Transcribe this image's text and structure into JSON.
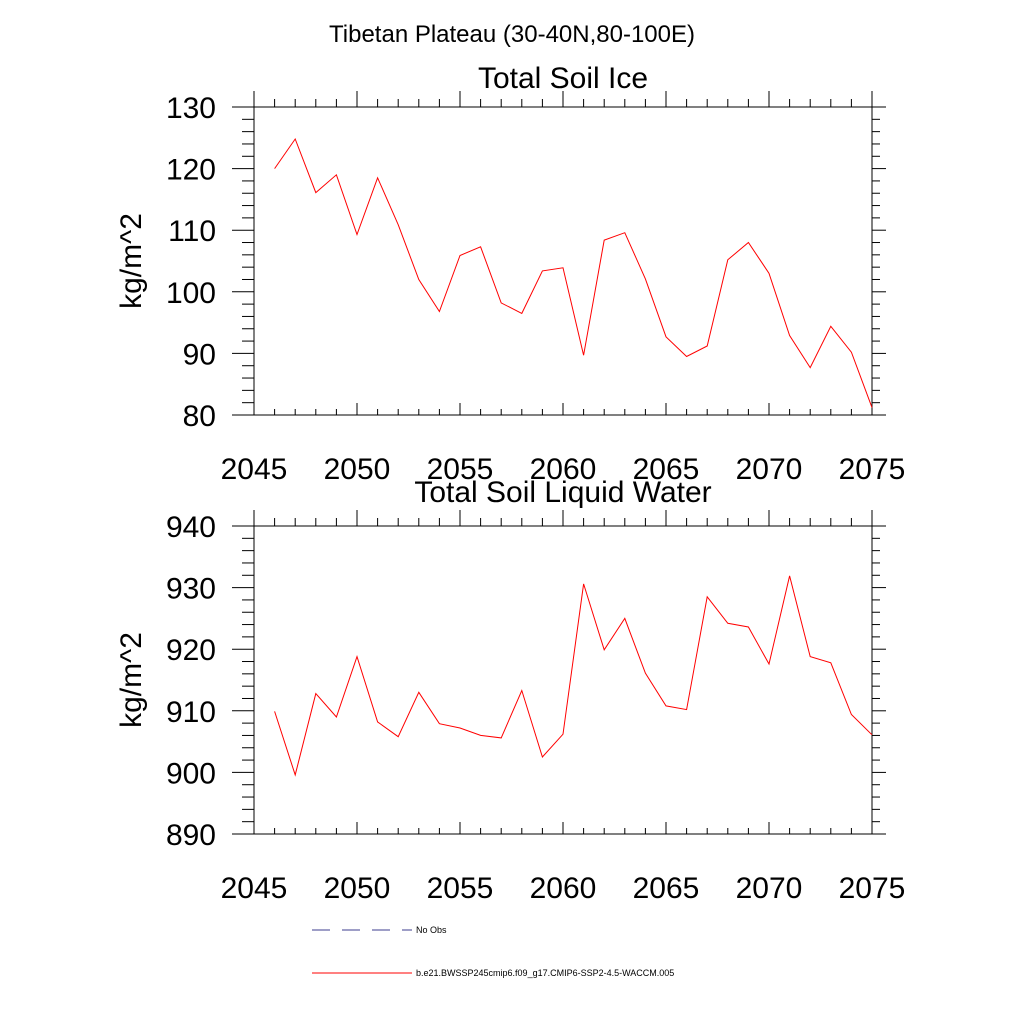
{
  "figure_title": "Tibetan Plateau (30-40N,80-100E)",
  "legend": {
    "obs_label": "No Obs",
    "model_label": "b.e21.BWSSP245cmip6.f09_g17.CMIP6-SSP2-4.5-WACCM.005",
    "obs_color": "#3d3d8f",
    "model_color": "#ff0000"
  },
  "chart_data": [
    {
      "type": "line",
      "title": "Total Soil Ice",
      "ylabel": "kg/m^2",
      "xlabel": "",
      "xlim": [
        2045,
        2075
      ],
      "ylim": [
        80,
        130
      ],
      "xticks": [
        "2045",
        "2050",
        "2055",
        "2060",
        "2065",
        "2070",
        "2075"
      ],
      "yticks": [
        "80",
        "90",
        "100",
        "110",
        "120",
        "130"
      ],
      "grid": false,
      "series": [
        {
          "color": "#ff0000",
          "x": [
            2046,
            2047,
            2048,
            2049,
            2050,
            2051,
            2052,
            2053,
            2054,
            2055,
            2056,
            2057,
            2058,
            2059,
            2060,
            2061,
            2062,
            2063,
            2064,
            2065,
            2066,
            2067,
            2068,
            2069,
            2070,
            2071,
            2072,
            2073,
            2074,
            2075
          ],
          "values": [
            120.0,
            124.8,
            116.1,
            119.0,
            109.3,
            118.5,
            110.9,
            102.0,
            96.8,
            105.9,
            107.3,
            98.2,
            96.5,
            103.4,
            103.9,
            89.7,
            108.4,
            109.6,
            102.1,
            92.7,
            89.5,
            91.2,
            105.2,
            108.0,
            103.0,
            92.9,
            87.7,
            94.4,
            90.2,
            81.2
          ]
        }
      ]
    },
    {
      "type": "line",
      "title": "Total Soil Liquid Water",
      "ylabel": "kg/m^2",
      "xlabel": "",
      "xlim": [
        2045,
        2075
      ],
      "ylim": [
        890,
        940
      ],
      "xticks": [
        "2045",
        "2050",
        "2055",
        "2060",
        "2065",
        "2070",
        "2075"
      ],
      "yticks": [
        "890",
        "900",
        "910",
        "920",
        "930",
        "940"
      ],
      "grid": false,
      "series": [
        {
          "color": "#ff0000",
          "x": [
            2046,
            2047,
            2048,
            2049,
            2050,
            2051,
            2052,
            2053,
            2054,
            2055,
            2056,
            2057,
            2058,
            2059,
            2060,
            2061,
            2062,
            2063,
            2064,
            2065,
            2066,
            2067,
            2068,
            2069,
            2070,
            2071,
            2072,
            2073,
            2074,
            2075
          ],
          "values": [
            909.9,
            899.6,
            912.8,
            909.0,
            918.8,
            908.2,
            905.8,
            913.0,
            907.9,
            907.2,
            906.0,
            905.6,
            913.3,
            902.5,
            906.2,
            930.6,
            919.9,
            925.0,
            916.1,
            910.8,
            910.2,
            928.5,
            924.2,
            923.6,
            917.6,
            931.9,
            918.8,
            917.8,
            909.4,
            906.1
          ]
        }
      ]
    }
  ]
}
